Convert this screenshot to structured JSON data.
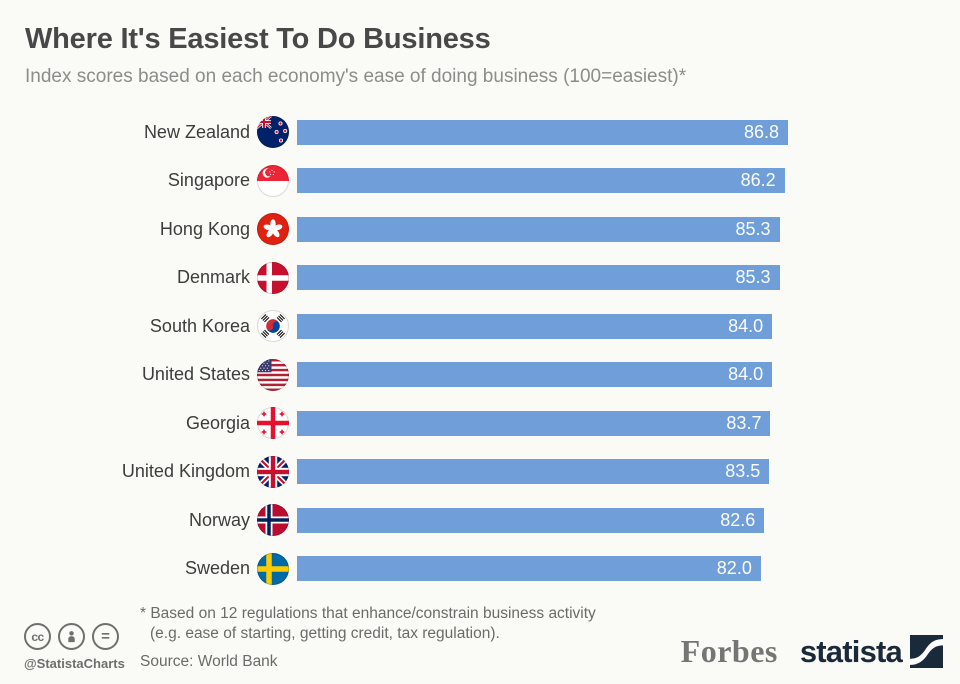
{
  "header": {
    "title": "Where It's Easiest To Do Business",
    "subtitle": "Index scores based on each economy's ease of doing business (100=easiest)*"
  },
  "chart_data": {
    "type": "bar",
    "orientation": "horizontal",
    "title": "Where It's Easiest To Do Business",
    "subtitle": "Index scores based on each economy's ease of doing business (100=easiest)*",
    "xlabel": "",
    "ylabel": "",
    "xlim": [
      0,
      86.8
    ],
    "grid": false,
    "legend": false,
    "bar_color": "#6f9ed9",
    "value_label_color": "#ffffff",
    "categories": [
      "New Zealand",
      "Singapore",
      "Hong Kong",
      "Denmark",
      "South Korea",
      "United States",
      "Georgia",
      "United Kingdom",
      "Norway",
      "Sweden"
    ],
    "values": [
      86.8,
      86.2,
      85.3,
      85.3,
      84.0,
      84.0,
      83.7,
      83.5,
      82.6,
      82.0
    ],
    "rows": [
      {
        "country": "New Zealand",
        "flag": "new-zealand-flag-icon",
        "value": "86.8"
      },
      {
        "country": "Singapore",
        "flag": "singapore-flag-icon",
        "value": "86.2"
      },
      {
        "country": "Hong Kong",
        "flag": "hong-kong-flag-icon",
        "value": "85.3"
      },
      {
        "country": "Denmark",
        "flag": "denmark-flag-icon",
        "value": "85.3"
      },
      {
        "country": "South Korea",
        "flag": "south-korea-flag-icon",
        "value": "84.0"
      },
      {
        "country": "United States",
        "flag": "united-states-flag-icon",
        "value": "84.0"
      },
      {
        "country": "Georgia",
        "flag": "georgia-flag-icon",
        "value": "83.7"
      },
      {
        "country": "United Kingdom",
        "flag": "united-kingdom-flag-icon",
        "value": "83.5"
      },
      {
        "country": "Norway",
        "flag": "norway-flag-icon",
        "value": "82.6"
      },
      {
        "country": "Sweden",
        "flag": "sweden-flag-icon",
        "value": "82.0"
      }
    ]
  },
  "footer": {
    "cc_label": "cc",
    "equals_label": "=",
    "handle": "@StatistaCharts",
    "footnote_line1": "* Based on 12 regulations that enhance/constrain business activity",
    "footnote_line2": "(e.g. ease of starting, getting credit, tax regulation).",
    "source": "Source: World Bank",
    "brand_forbes": "Forbes",
    "brand_statista": "statista"
  }
}
